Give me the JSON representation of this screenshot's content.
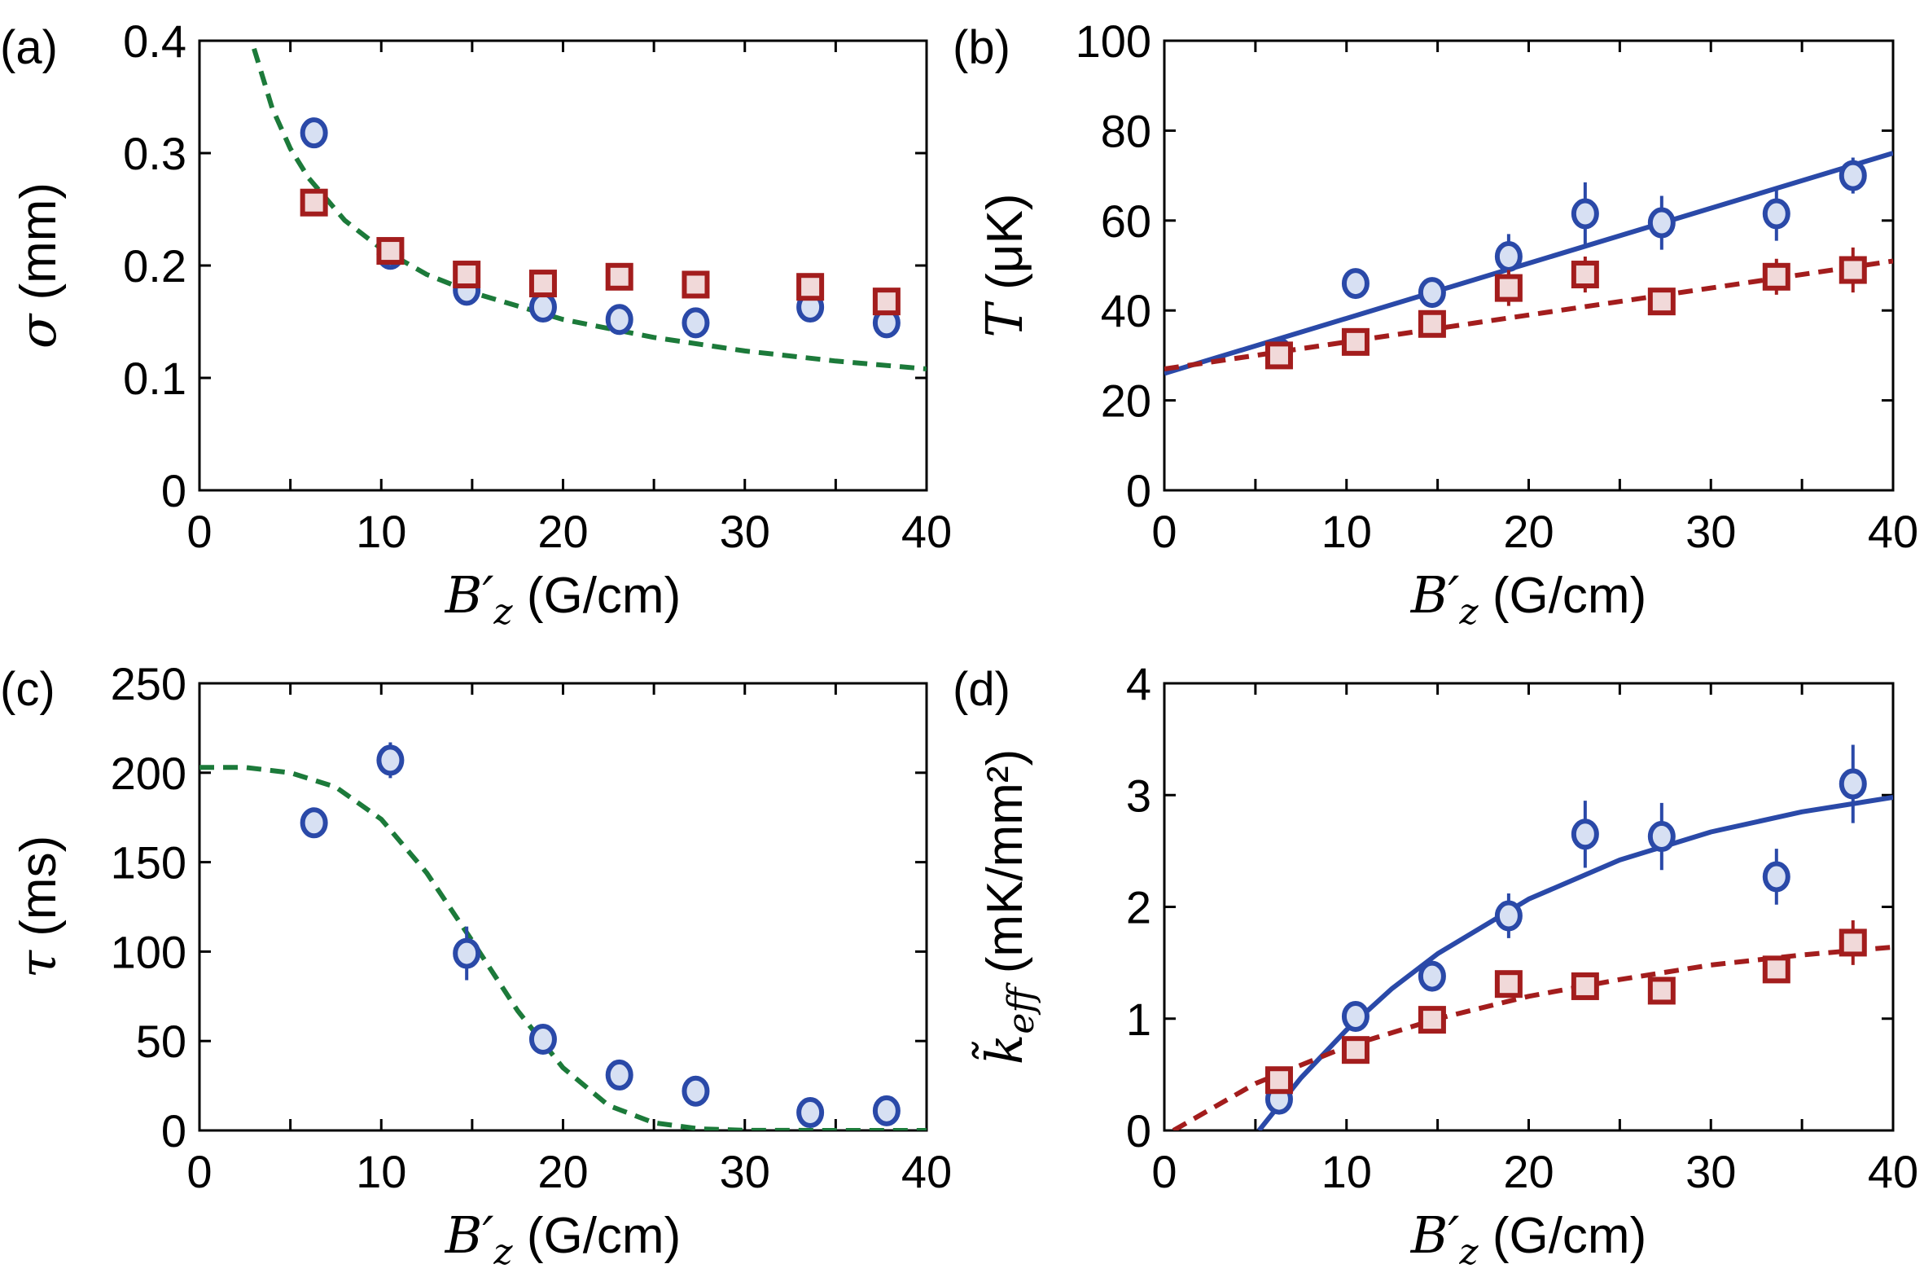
{
  "colors": {
    "blue": "#2a49a8",
    "blue_fill": "#d7e0f3",
    "red": "#a31d1d",
    "red_fill": "#f1d9d9",
    "green": "#1c7a3a"
  },
  "chart_data": [
    {
      "panel": "(a)",
      "type": "scatter",
      "xlabel": {
        "symbol": "B′",
        "sub": "z",
        "unit": " (G/cm)"
      },
      "ylabel": {
        "symbol": "σ",
        "sub": "",
        "unit": " (mm)"
      },
      "xlim": [
        0,
        40
      ],
      "ylim": [
        0,
        0.4
      ],
      "xticks": [
        0,
        10,
        20,
        30,
        40
      ],
      "xticklabels": [
        "0",
        "10",
        "20",
        "30",
        "40"
      ],
      "yticks": [
        0,
        0.1,
        0.2,
        0.3,
        0.4
      ],
      "yticklabels": [
        "0",
        "0.1",
        "0.2",
        "0.3",
        "0.4"
      ],
      "grid": false,
      "series": [
        {
          "marker": "circle",
          "color": "blue",
          "x": [
            6.3,
            10.5,
            14.7,
            18.9,
            23.1,
            27.3,
            33.6,
            37.8
          ],
          "y": [
            0.318,
            0.21,
            0.178,
            0.163,
            0.152,
            0.149,
            0.163,
            0.149
          ]
        },
        {
          "marker": "square",
          "color": "red",
          "x": [
            6.3,
            10.5,
            14.7,
            18.9,
            23.1,
            27.3,
            33.6,
            37.8
          ],
          "y": [
            0.256,
            0.213,
            0.192,
            0.184,
            0.19,
            0.183,
            0.181,
            0.168
          ]
        }
      ],
      "curves": [
        {
          "style": "dashed",
          "color": "green",
          "x": [
            3,
            4,
            5,
            6,
            8,
            10,
            12.5,
            15,
            20,
            25,
            30,
            35,
            40
          ],
          "y": [
            0.393,
            0.34,
            0.304,
            0.278,
            0.24,
            0.215,
            0.192,
            0.176,
            0.152,
            0.136,
            0.124,
            0.115,
            0.108
          ]
        }
      ]
    },
    {
      "panel": "(b)",
      "type": "scatter",
      "xlabel": {
        "symbol": "B′",
        "sub": "z",
        "unit": " (G/cm)"
      },
      "ylabel": {
        "symbol": "T",
        "sub": "",
        "unit": " (μK)"
      },
      "xlim": [
        0,
        40
      ],
      "ylim": [
        0,
        100
      ],
      "xticks": [
        0,
        10,
        20,
        30,
        40
      ],
      "xticklabels": [
        "0",
        "10",
        "20",
        "30",
        "40"
      ],
      "yticks": [
        0,
        20,
        40,
        60,
        80,
        100
      ],
      "yticklabels": [
        "0",
        "20",
        "40",
        "60",
        "80",
        "100"
      ],
      "grid": false,
      "series": [
        {
          "marker": "circle",
          "color": "blue",
          "x": [
            6.3,
            10.5,
            14.7,
            18.9,
            23.1,
            27.3,
            33.6,
            37.8
          ],
          "y": [
            30.5,
            46,
            44,
            52,
            61.5,
            59.5,
            61.5,
            70
          ],
          "yerr": [
            2,
            3,
            2,
            5,
            7,
            6,
            6,
            4
          ]
        },
        {
          "marker": "square",
          "color": "red",
          "x": [
            6.3,
            10.5,
            14.7,
            18.9,
            23.1,
            27.3,
            33.6,
            37.8
          ],
          "y": [
            30,
            33,
            37,
            45,
            48,
            42,
            47.5,
            49
          ],
          "yerr": [
            2,
            2,
            3,
            4,
            4,
            2,
            4,
            5
          ]
        }
      ],
      "curves": [
        {
          "style": "solid",
          "color": "blue",
          "x": [
            0,
            40
          ],
          "y": [
            26,
            75
          ]
        },
        {
          "style": "dashed",
          "color": "red",
          "x": [
            0,
            40
          ],
          "y": [
            27,
            51
          ]
        }
      ]
    },
    {
      "panel": "(c)",
      "type": "scatter",
      "xlabel": {
        "symbol": "B′",
        "sub": "z",
        "unit": " (G/cm)"
      },
      "ylabel": {
        "symbol": "τ",
        "sub": "",
        "unit": " (ms)"
      },
      "xlim": [
        0,
        40
      ],
      "ylim": [
        0,
        250
      ],
      "xticks": [
        0,
        10,
        20,
        30,
        40
      ],
      "xticklabels": [
        "0",
        "10",
        "20",
        "30",
        "40"
      ],
      "yticks": [
        0,
        50,
        100,
        150,
        200,
        250
      ],
      "yticklabels": [
        "0",
        "50",
        "100",
        "150",
        "200",
        "250"
      ],
      "grid": false,
      "series": [
        {
          "marker": "circle",
          "color": "blue",
          "x": [
            6.3,
            10.5,
            14.7,
            18.9,
            23.1,
            27.3,
            33.6,
            37.8
          ],
          "y": [
            172,
            207,
            99,
            51,
            31,
            22,
            10,
            11
          ],
          "yerr": [
            3,
            10,
            15,
            8,
            3,
            3,
            3,
            3
          ]
        }
      ],
      "curves": [
        {
          "style": "dashed",
          "color": "green",
          "x": [
            0,
            2.5,
            5,
            7.5,
            10,
            12.5,
            15,
            17.5,
            20,
            22.5,
            25,
            27.5,
            30,
            35,
            40
          ],
          "y": [
            203,
            203,
            200,
            192,
            174,
            144,
            106,
            67,
            35,
            14,
            4.3,
            0.9,
            0.1,
            0,
            0
          ]
        }
      ]
    },
    {
      "panel": "(d)",
      "type": "scatter",
      "xlabel": {
        "symbol": "B′",
        "sub": "z",
        "unit": " (G/cm)"
      },
      "ylabel": {
        "symbol": "k̃",
        "sub": "eff",
        "unit": " (mK/mm²)"
      },
      "xlim": [
        0,
        40
      ],
      "ylim": [
        0,
        4
      ],
      "xticks": [
        0,
        10,
        20,
        30,
        40
      ],
      "xticklabels": [
        "0",
        "10",
        "20",
        "30",
        "40"
      ],
      "yticks": [
        0,
        1,
        2,
        3,
        4
      ],
      "yticklabels": [
        "0",
        "1",
        "2",
        "3",
        "4"
      ],
      "grid": false,
      "series": [
        {
          "marker": "circle",
          "color": "blue",
          "x": [
            6.3,
            10.5,
            14.7,
            18.9,
            23.1,
            27.3,
            33.6,
            37.8
          ],
          "y": [
            0.28,
            1.02,
            1.38,
            1.92,
            2.65,
            2.63,
            2.27,
            3.1
          ],
          "yerr": [
            0.05,
            0.1,
            0.08,
            0.2,
            0.3,
            0.3,
            0.25,
            0.35
          ]
        },
        {
          "marker": "square",
          "color": "red",
          "x": [
            6.3,
            10.5,
            14.7,
            18.9,
            23.1,
            27.3,
            33.6,
            37.8
          ],
          "y": [
            0.45,
            0.72,
            0.99,
            1.31,
            1.29,
            1.25,
            1.44,
            1.68
          ],
          "yerr": [
            0.05,
            0.08,
            0.08,
            0.12,
            0.12,
            0.1,
            0.12,
            0.2
          ]
        }
      ],
      "curves": [
        {
          "style": "solid",
          "color": "blue",
          "x": [
            5.2,
            7.5,
            10,
            12.5,
            15,
            20,
            25,
            30,
            35,
            40
          ],
          "y": [
            0,
            0.47,
            0.9,
            1.27,
            1.58,
            2.07,
            2.42,
            2.67,
            2.85,
            2.98
          ]
        },
        {
          "style": "dashed",
          "color": "red",
          "x": [
            0.5,
            5,
            10,
            15,
            20,
            25,
            30,
            35,
            40
          ],
          "y": [
            0,
            0.42,
            0.75,
            1.0,
            1.2,
            1.35,
            1.48,
            1.57,
            1.64
          ]
        }
      ]
    }
  ]
}
